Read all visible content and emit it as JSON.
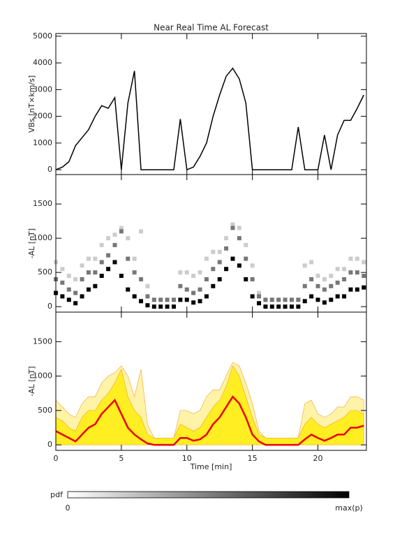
{
  "chart_data": [
    {
      "type": "line",
      "title": "Near Real Time AL Forecast",
      "ylabel": "VBs [nT×km/s]",
      "x": [
        0,
        0.5,
        1,
        1.5,
        2,
        2.5,
        3,
        3.5,
        4,
        4.5,
        5,
        5.5,
        6,
        6.5,
        7,
        7.5,
        8,
        8.5,
        9,
        9.5,
        10,
        10.5,
        11,
        11.5,
        12,
        12.5,
        13,
        13.5,
        14,
        14.5,
        15,
        15.5,
        16,
        16.5,
        17,
        17.5,
        18,
        18.5,
        19,
        19.5,
        20,
        20.5,
        21,
        21.5,
        22,
        22.5,
        23,
        23.5
      ],
      "series": [
        {
          "color": "#000000",
          "values": [
            0,
            100,
            300,
            900,
            1200,
            1500,
            2000,
            2400,
            2300,
            2700,
            0,
            2500,
            3700,
            0,
            0,
            0,
            0,
            0,
            0,
            1900,
            0,
            100,
            500,
            1000,
            2000,
            2800,
            3500,
            3800,
            3400,
            2500,
            0,
            0,
            0,
            0,
            0,
            0,
            0,
            1600,
            0,
            0,
            0,
            1300,
            0,
            1300,
            1850,
            1850,
            2300,
            2800
          ]
        }
      ],
      "xlim": [
        0,
        23.7
      ],
      "ylim": [
        -180,
        5100
      ],
      "yticks": [
        0,
        1000,
        2000,
        3000,
        4000,
        5000
      ]
    },
    {
      "type": "heatmap",
      "ylabel": "-AL [nT]",
      "x": [
        0,
        0.5,
        1,
        1.5,
        2,
        2.5,
        3,
        3.5,
        4,
        4.5,
        5,
        5.5,
        6,
        6.5,
        7,
        7.5,
        8,
        8.5,
        9,
        9.5,
        10,
        10.5,
        11,
        11.5,
        12,
        12.5,
        13,
        13.5,
        14,
        14.5,
        15,
        15.5,
        16,
        16.5,
        17,
        17.5,
        18,
        18.5,
        19,
        19.5,
        20,
        20.5,
        21,
        21.5,
        22,
        22.5,
        23,
        23.5
      ],
      "series": [
        {
          "color": "#000000",
          "values": [
            200,
            150,
            100,
            50,
            150,
            250,
            300,
            450,
            550,
            650,
            450,
            250,
            150,
            80,
            20,
            0,
            0,
            0,
            0,
            100,
            100,
            60,
            80,
            150,
            300,
            400,
            550,
            700,
            600,
            400,
            150,
            50,
            0,
            0,
            0,
            0,
            0,
            0,
            80,
            150,
            100,
            60,
            100,
            150,
            150,
            250,
            250,
            280
          ]
        },
        {
          "color": "#777777",
          "values": [
            400,
            350,
            250,
            200,
            400,
            500,
            500,
            650,
            750,
            900,
            1100,
            700,
            500,
            400,
            150,
            100,
            100,
            100,
            100,
            300,
            250,
            200,
            250,
            400,
            550,
            650,
            850,
            1150,
            1000,
            700,
            400,
            150,
            100,
            100,
            100,
            100,
            100,
            100,
            300,
            400,
            300,
            250,
            300,
            350,
            400,
            500,
            500,
            450
          ]
        },
        {
          "color": "#cccccc",
          "values": [
            650,
            550,
            450,
            400,
            600,
            700,
            700,
            900,
            1000,
            1050,
            1150,
            1000,
            700,
            1100,
            300,
            100,
            100,
            100,
            100,
            500,
            500,
            450,
            500,
            700,
            800,
            800,
            1000,
            1200,
            1150,
            900,
            600,
            200,
            100,
            100,
            100,
            100,
            100,
            100,
            600,
            650,
            450,
            400,
            450,
            550,
            550,
            700,
            700,
            650
          ]
        }
      ],
      "xlim": [
        0,
        23.7
      ],
      "ylim": [
        -80,
        1930
      ],
      "yticks": [
        0,
        500,
        1000,
        1500
      ]
    },
    {
      "type": "band",
      "ylabel": "-AL [nT]",
      "xlabel": "Time [min]",
      "x": [
        0,
        0.5,
        1,
        1.5,
        2,
        2.5,
        3,
        3.5,
        4,
        4.5,
        5,
        5.5,
        6,
        6.5,
        7,
        7.5,
        8,
        8.5,
        9,
        9.5,
        10,
        10.5,
        11,
        11.5,
        12,
        12.5,
        13,
        13.5,
        14,
        14.5,
        15,
        15.5,
        16,
        16.5,
        17,
        17.5,
        18,
        18.5,
        19,
        19.5,
        20,
        20.5,
        21,
        21.5,
        22,
        22.5,
        23,
        23.5
      ],
      "series": [
        {
          "color": "#fff3a8",
          "values": [
            650,
            550,
            450,
            400,
            600,
            700,
            700,
            900,
            1000,
            1050,
            1150,
            1000,
            700,
            1100,
            300,
            100,
            100,
            100,
            100,
            500,
            500,
            450,
            500,
            700,
            800,
            800,
            1000,
            1200,
            1150,
            900,
            600,
            200,
            100,
            100,
            100,
            100,
            100,
            100,
            600,
            650,
            450,
            400,
            450,
            550,
            550,
            700,
            700,
            650
          ]
        },
        {
          "color": "#ffee22",
          "values": [
            400,
            350,
            250,
            200,
            400,
            500,
            500,
            650,
            750,
            900,
            1100,
            700,
            500,
            400,
            150,
            100,
            100,
            100,
            100,
            300,
            250,
            200,
            250,
            400,
            550,
            650,
            850,
            1150,
            1000,
            700,
            400,
            150,
            100,
            100,
            100,
            100,
            100,
            100,
            300,
            400,
            300,
            250,
            300,
            350,
            400,
            500,
            500,
            450
          ]
        },
        {
          "color": "#ee0000",
          "values": [
            200,
            150,
            100,
            50,
            150,
            250,
            300,
            450,
            550,
            650,
            450,
            250,
            150,
            80,
            20,
            0,
            0,
            0,
            0,
            100,
            100,
            60,
            80,
            150,
            300,
            400,
            550,
            700,
            600,
            400,
            150,
            50,
            0,
            0,
            0,
            0,
            0,
            0,
            80,
            150,
            100,
            60,
            100,
            150,
            150,
            250,
            250,
            280
          ]
        }
      ],
      "xlim": [
        0,
        23.7
      ],
      "ylim": [
        -80,
        1930
      ],
      "yticks": [
        0,
        500,
        1000,
        1500
      ],
      "xticks": [
        0,
        5,
        10,
        15,
        20
      ]
    }
  ],
  "colorbar": {
    "label": "pdf",
    "min_label": "0",
    "max_label": "max(p)"
  }
}
